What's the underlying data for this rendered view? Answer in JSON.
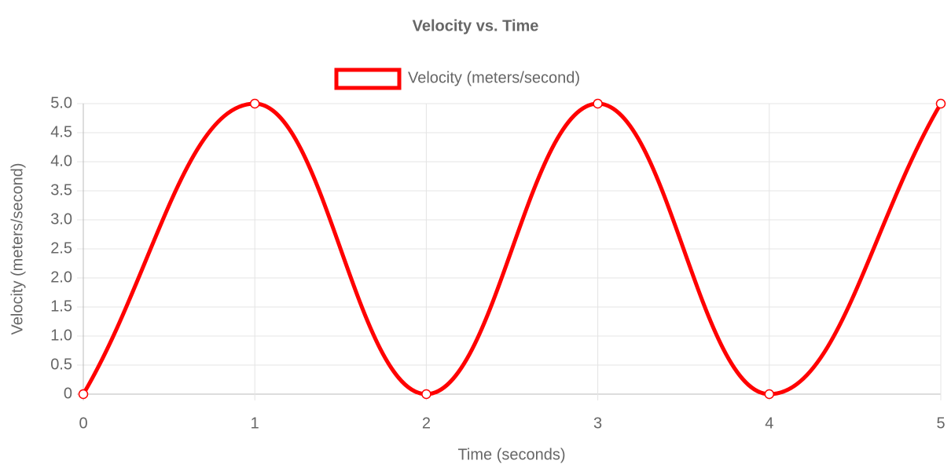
{
  "chart_data": {
    "type": "line",
    "title": "Velocity vs. Time",
    "x": [
      0,
      1,
      2,
      3,
      4,
      5
    ],
    "series": [
      {
        "name": "Velocity (meters/second)",
        "color": "#ff0000",
        "values": [
          0,
          5,
          0,
          5,
          0,
          5
        ]
      }
    ],
    "xlabel": "Time (seconds)",
    "ylabel": "Velocity (meters/second)",
    "xlim": [
      0,
      5
    ],
    "xticks": [
      0,
      1,
      2,
      3,
      4,
      5
    ],
    "ylim": [
      0,
      5
    ],
    "yticks": [
      0,
      0.5,
      {
        "value": 1,
        "label": "1.0"
      },
      1.5,
      {
        "value": 2,
        "label": "2.0"
      },
      2.5,
      {
        "value": 3,
        "label": "3.0"
      },
      3.5,
      {
        "value": 4,
        "label": "4.0"
      },
      4.5,
      {
        "value": 5,
        "label": "5.0"
      }
    ],
    "grid": true,
    "legend": "top",
    "smooth": true
  }
}
